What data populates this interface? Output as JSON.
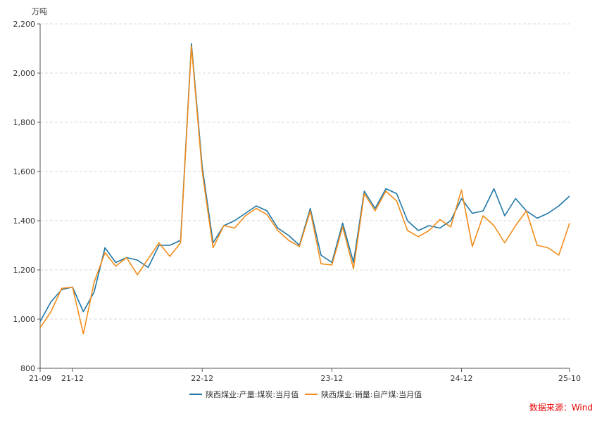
{
  "chart_data": {
    "type": "line",
    "y_unit": "万吨",
    "ylim": [
      800,
      2200
    ],
    "y_ticks": [
      800,
      1000,
      1200,
      1400,
      1600,
      1800,
      2000,
      2200
    ],
    "y_tick_labels": [
      "800",
      "1,000",
      "1,200",
      "1,400",
      "1,600",
      "1,800",
      "2,000",
      "2,200"
    ],
    "x_tick_labels": [
      {
        "index": 0,
        "label": "21-09"
      },
      {
        "index": 3,
        "label": "21-12"
      },
      {
        "index": 15,
        "label": "22-12"
      },
      {
        "index": 27,
        "label": "23-12"
      },
      {
        "index": 39,
        "label": "24-12"
      },
      {
        "index": 49,
        "label": "25-10"
      }
    ],
    "grid": true,
    "legend_position": "bottom",
    "colors": {
      "production": "#1f77a8",
      "sales": "#f28c1a",
      "source": "#e60000"
    },
    "series": [
      {
        "name": "陕西煤业:产量:煤炭:当月值",
        "values": [
          990,
          1070,
          1120,
          1130,
          1030,
          1110,
          1290,
          1230,
          1250,
          1240,
          1210,
          1300,
          1300,
          1320,
          2120,
          1620,
          1310,
          1380,
          1400,
          1430,
          1460,
          1440,
          1370,
          1340,
          1300,
          1450,
          1260,
          1230,
          1390,
          1230,
          1520,
          1450,
          1530,
          1510,
          1400,
          1360,
          1380,
          1370,
          1400,
          1490,
          1430,
          1440,
          1530,
          1420,
          1490,
          1440,
          1410,
          1430,
          1460,
          1500
        ]
      },
      {
        "name": "陕西煤业:销量:自产煤:当月值",
        "values": [
          965,
          1030,
          1125,
          1130,
          940,
          1150,
          1270,
          1215,
          1250,
          1180,
          1245,
          1310,
          1255,
          1310,
          2110,
          1600,
          1290,
          1380,
          1370,
          1420,
          1450,
          1425,
          1360,
          1320,
          1295,
          1440,
          1225,
          1220,
          1375,
          1205,
          1510,
          1440,
          1520,
          1480,
          1360,
          1335,
          1360,
          1405,
          1375,
          1525,
          1295,
          1420,
          1380,
          1310,
          1380,
          1440,
          1300,
          1290,
          1260,
          1390
        ]
      }
    ]
  },
  "source_note": "数据来源：Wind"
}
